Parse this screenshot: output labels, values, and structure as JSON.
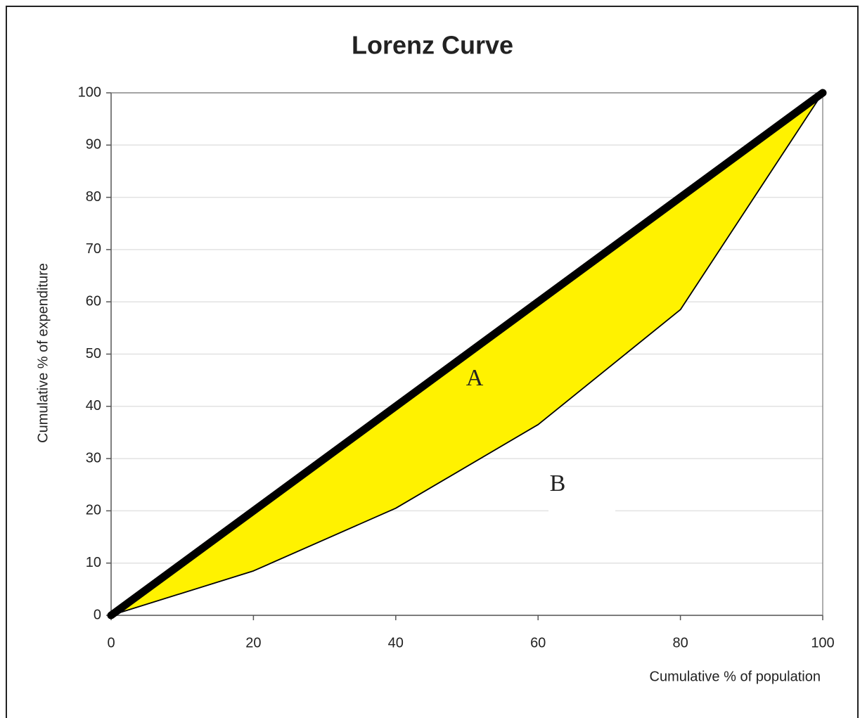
{
  "chart_data": {
    "type": "line",
    "title": "Lorenz Curve",
    "x_label": "Cumulative % of population",
    "y_label": "Cumulative % of expenditure",
    "x": [
      0,
      20,
      40,
      60,
      80,
      100
    ],
    "series": [
      {
        "color": "#000000",
        "values": [
          0,
          20,
          40,
          60,
          80,
          100
        ]
      },
      {
        "color": "#000000",
        "values": [
          0,
          8.5,
          20.5,
          36.5,
          58.5,
          100
        ]
      }
    ],
    "fill_color": "#fff200",
    "annotations": [
      "A",
      "B"
    ],
    "xlim": [
      0,
      100
    ],
    "xticks": [
      0,
      20,
      40,
      60,
      80,
      100
    ],
    "ylim": [
      0,
      100
    ],
    "yticks": [
      0,
      10,
      20,
      30,
      40,
      50,
      60,
      70,
      80,
      90,
      100
    ],
    "grid": true
  }
}
